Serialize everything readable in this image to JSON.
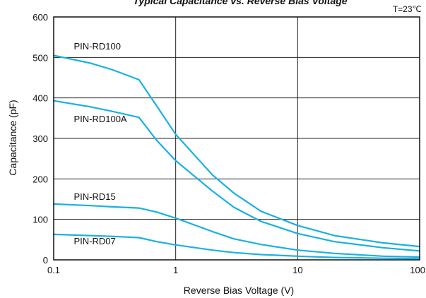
{
  "chart_data": {
    "type": "line",
    "title": "Typical Capacitance vs. Reverse Bias Voltage",
    "note": "T=23℃",
    "xlabel": "Reverse Bias Voltage (V)",
    "ylabel": "Capacitance (pF)",
    "xscale": "log",
    "xlim": [
      0.1,
      100
    ],
    "ylim": [
      0,
      600
    ],
    "x_ticks": [
      {
        "value": 0.1,
        "label": "0.1"
      },
      {
        "value": 1,
        "label": "1"
      },
      {
        "value": 10,
        "label": "10"
      },
      {
        "value": 100,
        "label": "100"
      }
    ],
    "y_ticks": [
      {
        "value": 0,
        "label": "0"
      },
      {
        "value": 100,
        "label": "100"
      },
      {
        "value": 200,
        "label": "200"
      },
      {
        "value": 300,
        "label": "300"
      },
      {
        "value": 400,
        "label": "400"
      },
      {
        "value": 500,
        "label": "500"
      },
      {
        "value": 600,
        "label": "600"
      }
    ],
    "grid": true,
    "line_color": "#1ab0e4",
    "series": [
      {
        "name": "PIN-RD100",
        "label_at": {
          "x": 0.115,
          "y": 520
        },
        "points": [
          [
            0.1,
            505
          ],
          [
            0.2,
            486
          ],
          [
            0.3,
            470
          ],
          [
            0.5,
            445
          ],
          [
            0.7,
            380
          ],
          [
            1,
            310
          ],
          [
            2,
            210
          ],
          [
            3,
            165
          ],
          [
            5,
            120
          ],
          [
            10,
            85
          ],
          [
            20,
            60
          ],
          [
            50,
            42
          ],
          [
            100,
            33
          ]
        ]
      },
      {
        "name": "PIN-RD100A",
        "label_at": {
          "x": 0.115,
          "y": 340
        },
        "points": [
          [
            0.1,
            393
          ],
          [
            0.2,
            378
          ],
          [
            0.3,
            367
          ],
          [
            0.5,
            352
          ],
          [
            0.7,
            295
          ],
          [
            1,
            245
          ],
          [
            2,
            170
          ],
          [
            3,
            130
          ],
          [
            5,
            95
          ],
          [
            10,
            65
          ],
          [
            20,
            45
          ],
          [
            50,
            30
          ],
          [
            100,
            22
          ]
        ]
      },
      {
        "name": "PIN-RD15",
        "label_at": {
          "x": 0.115,
          "y": 148
        },
        "points": [
          [
            0.1,
            138
          ],
          [
            0.2,
            134
          ],
          [
            0.3,
            131
          ],
          [
            0.5,
            128
          ],
          [
            0.7,
            118
          ],
          [
            1,
            103
          ],
          [
            2,
            70
          ],
          [
            3,
            52
          ],
          [
            5,
            38
          ],
          [
            10,
            24
          ],
          [
            20,
            16
          ],
          [
            50,
            9
          ],
          [
            100,
            7
          ]
        ]
      },
      {
        "name": "PIN-RD07",
        "label_at": {
          "x": 0.115,
          "y": 38
        },
        "points": [
          [
            0.1,
            63
          ],
          [
            0.2,
            60
          ],
          [
            0.3,
            58
          ],
          [
            0.5,
            55
          ],
          [
            0.7,
            45
          ],
          [
            1,
            37
          ],
          [
            2,
            24
          ],
          [
            3,
            18
          ],
          [
            5,
            13
          ],
          [
            10,
            9
          ],
          [
            20,
            6
          ],
          [
            50,
            4
          ],
          [
            100,
            3
          ]
        ]
      }
    ]
  }
}
